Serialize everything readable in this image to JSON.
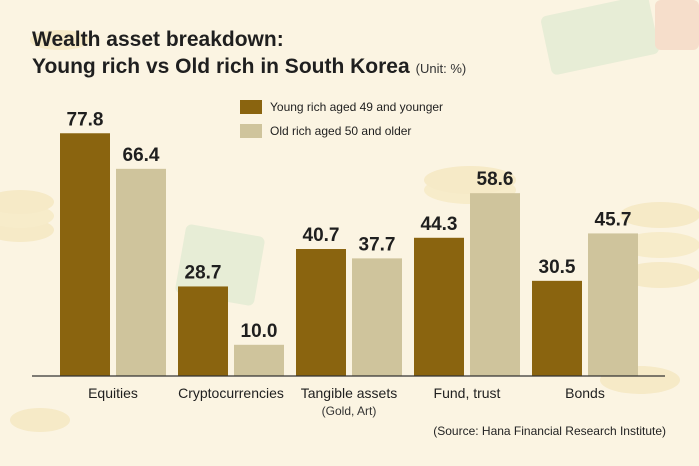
{
  "title_line1": "Wealth asset breakdown:",
  "title_line2": "Young rich vs Old rich in South Korea",
  "unit": "(Unit: %)",
  "source": "(Source: Hana Financial Research Institute)",
  "colors": {
    "young": "#8a640f",
    "old": "#cfc49c",
    "axis": "#333333",
    "background": "#fbf4e2"
  },
  "chart_data": {
    "type": "bar",
    "categories": [
      "Equities",
      "Cryptocurrencies",
      "Tangible assets",
      "Fund, trust",
      "Bonds"
    ],
    "category_sublabels": [
      "",
      "",
      "(Gold, Art)",
      "",
      ""
    ],
    "series": [
      {
        "name": "Young rich aged 49 and younger",
        "values": [
          77.8,
          28.7,
          40.7,
          44.3,
          30.5
        ]
      },
      {
        "name": "Old rich aged 50 and older",
        "values": [
          66.4,
          10.0,
          37.7,
          58.6,
          45.7
        ]
      }
    ],
    "ylim": [
      0,
      80
    ],
    "legend_position": "top",
    "grid": false
  }
}
